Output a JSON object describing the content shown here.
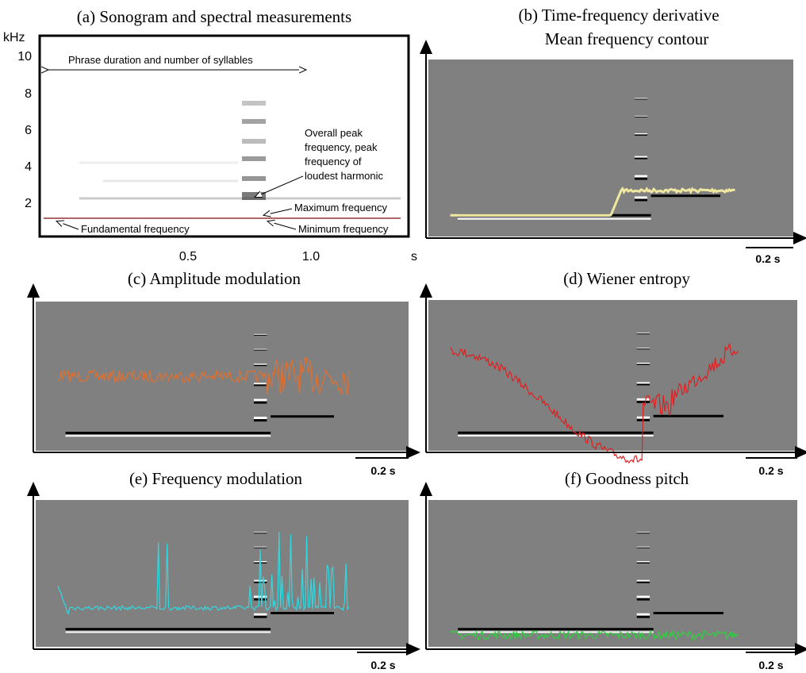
{
  "panels": [
    {
      "title": "(a)  Sonogram and spectral measurements",
      "y_unit": "kHz",
      "yticks": [
        "10",
        "8",
        "6",
        "4",
        "2"
      ],
      "x_unit": "s",
      "xticks": [
        "0.5",
        "1.0"
      ],
      "annotations": {
        "phrase": "Phrase duration and number of syllables",
        "peak": [
          "Overall peak",
          "frequency, peak",
          "frequency of",
          "loudest harmonic"
        ],
        "max": "Maximum frequency",
        "min": "Minimum frequency",
        "fundamental": "Fundamental frequency"
      }
    },
    {
      "title": [
        "(b) Time-frequency derivative",
        "Mean frequency contour"
      ],
      "scale": "0.2 s"
    },
    {
      "title": "(c) Amplitude modulation",
      "scale": "0.2 s"
    },
    {
      "title": "(d)   Wiener entropy",
      "scale": "0.2 s"
    },
    {
      "title": "(e)  Frequency modulation",
      "scale": "0.2 s"
    },
    {
      "title": "(f)  Goodness pitch",
      "scale": "0.2 s"
    }
  ]
}
